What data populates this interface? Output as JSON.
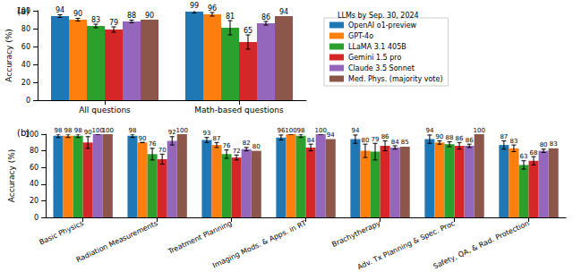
{
  "legend_title": "LLMs by Sep. 30, 2024",
  "chart_data": [
    {
      "type": "bar",
      "title": "(a)",
      "y_label": "Accuracy (%)",
      "categories": [
        "All questions",
        "Math-based questions"
      ],
      "series": [
        {
          "name": "OpenAI o1-preview",
          "color": "#1f77b4",
          "values": [
            94,
            99
          ],
          "errors": [
            1.5,
            1.5
          ]
        },
        {
          "name": "GPT-4o",
          "color": "#ff7f0e",
          "values": [
            90,
            96
          ],
          "errors": [
            1.5,
            2
          ]
        },
        {
          "name": "LLaMA 3.1 405B",
          "color": "#2ca02c",
          "values": [
            83,
            81
          ],
          "errors": [
            2,
            8
          ]
        },
        {
          "name": "Gemini 1.5 pro",
          "color": "#d62728",
          "values": [
            79,
            65
          ],
          "errors": [
            3,
            8
          ]
        },
        {
          "name": "Claude 3.5 Sonnet",
          "color": "#9467bd",
          "values": [
            88,
            86
          ],
          "errors": [
            1.5,
            2
          ]
        },
        {
          "name": "Med. Phys. (majority vote)",
          "color": "#8c564b",
          "values": [
            90,
            94
          ],
          "errors": [
            null,
            null
          ]
        }
      ],
      "ylim": [
        0,
        100
      ],
      "yticks": [
        0,
        20,
        40,
        60,
        80,
        100
      ],
      "grid": false,
      "legend": "upper right",
      "data_labels": true
    },
    {
      "type": "bar",
      "title": "(b)",
      "y_label": "Accuracy (%)",
      "categories": [
        "Basic Physics",
        "Radiation Measurements",
        "Treatment Planning",
        "Imaging Mods. & Apps. in RT",
        "Brachytherapy",
        "Adv. Tx Planning & Spec. Proc",
        "Safety, QA, & Rad. Protection"
      ],
      "series": [
        {
          "name": "OpenAI o1-preview",
          "color": "#1f77b4",
          "values": [
            98,
            98,
            93,
            96,
            94,
            94,
            87
          ],
          "errors": [
            2,
            2,
            3,
            3,
            5,
            5,
            5
          ]
        },
        {
          "name": "GPT-4o",
          "color": "#ff7f0e",
          "values": [
            98,
            90,
            87,
            100,
            80,
            90,
            83
          ],
          "errors": [
            2,
            0,
            3,
            0,
            8,
            2,
            4
          ]
        },
        {
          "name": "LLaMA 3.1 405B",
          "color": "#2ca02c",
          "values": [
            98,
            76,
            76,
            98,
            79,
            88,
            63
          ],
          "errors": [
            2,
            7,
            5,
            2,
            10,
            3,
            5
          ]
        },
        {
          "name": "Gemini 1.5 pro",
          "color": "#d62728",
          "values": [
            90,
            70,
            72,
            84,
            86,
            86,
            68
          ],
          "errors": [
            7,
            6,
            3,
            4,
            6,
            4,
            5
          ]
        },
        {
          "name": "Claude 3.5 Sonnet",
          "color": "#9467bd",
          "values": [
            100,
            92,
            82,
            100,
            84,
            86,
            80
          ],
          "errors": [
            0,
            5,
            2,
            0,
            2,
            2,
            2
          ]
        },
        {
          "name": "Med. Phys. (majority vote)",
          "color": "#8c564b",
          "values": [
            100,
            100,
            80,
            94,
            85,
            100,
            83
          ],
          "errors": [
            null,
            null,
            null,
            null,
            null,
            null,
            null
          ]
        }
      ],
      "ylim": [
        0,
        100
      ],
      "yticks": [
        0,
        20,
        40,
        60,
        80,
        100
      ],
      "grid": false,
      "data_labels": true
    }
  ]
}
